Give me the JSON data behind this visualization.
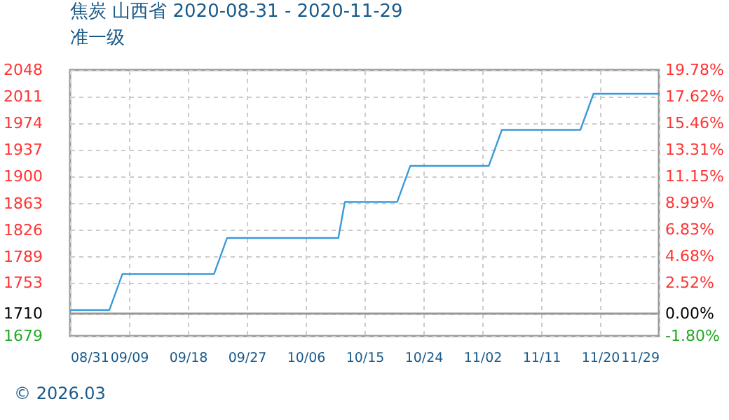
{
  "chart_data": {
    "type": "line",
    "title": "焦炭 山西省 2020-08-31 - 2020-11-29",
    "subtitle": "准一级",
    "annotations": [
      "© 2026.03"
    ],
    "x": [
      "2020-08-31",
      "2020-09-06",
      "2020-09-08",
      "2020-09-22",
      "2020-09-24",
      "2020-10-11",
      "2020-10-12",
      "2020-10-20",
      "2020-10-22",
      "2020-11-03",
      "2020-11-05",
      "2020-11-17",
      "2020-11-19",
      "2020-11-29"
    ],
    "series": [
      {
        "color": "#3a9ad9",
        "values": [
          1715,
          1715,
          1765,
          1765,
          1815,
          1815,
          1865,
          1865,
          1915,
          1915,
          1965,
          1965,
          2015,
          2015
        ]
      }
    ],
    "xlim": [
      "2020-08-31",
      "2020-11-29"
    ],
    "xticks": [
      {
        "value": "2020-08-31",
        "label": "08/31"
      },
      {
        "value": "2020-09-09",
        "label": "09/09"
      },
      {
        "value": "2020-09-18",
        "label": "09/18"
      },
      {
        "value": "2020-09-27",
        "label": "09/27"
      },
      {
        "value": "2020-10-06",
        "label": "10/06"
      },
      {
        "value": "2020-10-15",
        "label": "10/15"
      },
      {
        "value": "2020-10-24",
        "label": "10/24"
      },
      {
        "value": "2020-11-02",
        "label": "11/02"
      },
      {
        "value": "2020-11-11",
        "label": "11/11"
      },
      {
        "value": "2020-11-20",
        "label": "11/20"
      },
      {
        "value": "2020-11-29",
        "label": "11/29"
      }
    ],
    "ylim": [
      1679,
      2048
    ],
    "yticks": [
      1679,
      1710,
      1753,
      1789,
      1826,
      1863,
      1900,
      1937,
      1974,
      2011,
      2048
    ],
    "y2lim": [
      -1.8,
      19.78
    ],
    "y2ticks": [
      {
        "value": -1.8,
        "label": "-1.80%"
      },
      {
        "value": 0,
        "label": "0.00%"
      },
      {
        "value": 2.52,
        "label": "2.52%"
      },
      {
        "value": 4.68,
        "label": "4.68%"
      },
      {
        "value": 6.83,
        "label": "6.83%"
      },
      {
        "value": 8.99,
        "label": "8.99%"
      },
      {
        "value": 11.15,
        "label": "11.15%"
      },
      {
        "value": 13.31,
        "label": "13.31%"
      },
      {
        "value": 15.46,
        "label": "15.46%"
      },
      {
        "value": 17.62,
        "label": "17.62%"
      },
      {
        "value": 19.78,
        "label": "19.78%"
      }
    ],
    "ref_lines": [
      {
        "axis": "y",
        "value": 1710,
        "color": "#999999"
      }
    ],
    "grid": true,
    "line_style": "solid",
    "marker": "none"
  }
}
